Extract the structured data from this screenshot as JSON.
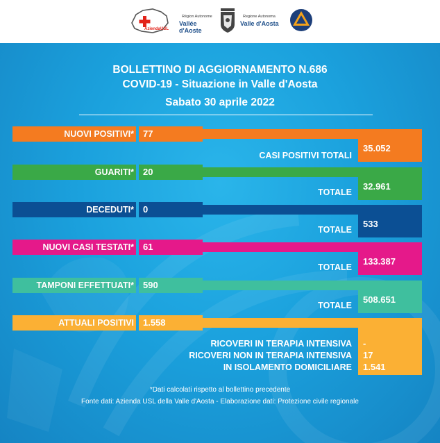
{
  "header": {
    "logo1_text": "AziendaUSL",
    "logo2_line1": "Région Autonome",
    "logo2_line2": "Vallée d'Aoste",
    "logo3_line1": "Regione Autonoma",
    "logo3_line2": "Valle d'Aosta"
  },
  "title": {
    "line1": "BOLLETTINO DI AGGIORNAMENTO N.686",
    "line2": "COVID-19 - Situazione in Valle d'Aosta",
    "date": "Sabato 30 aprile 2022"
  },
  "rows": [
    {
      "label": "NUOVI POSITIVI*",
      "value": "77",
      "total_label": "CASI POSITIVI TOTALI",
      "total_value": "35.052",
      "color": "#f47b20"
    },
    {
      "label": "GUARITI*",
      "value": "20",
      "total_label": "TOTALE",
      "total_value": "32.961",
      "color": "#3aa947"
    },
    {
      "label": "DECEDUTI*",
      "value": "0",
      "total_label": "TOTALE",
      "total_value": "533",
      "color": "#0b4f94"
    },
    {
      "label": "NUOVI CASI TESTATI*",
      "value": "61",
      "total_label": "TOTALE",
      "total_value": "133.387",
      "color": "#e5198a"
    },
    {
      "label": "TAMPONI EFFETTUATI*",
      "value": "590",
      "total_label": "TOTALE",
      "total_value": "508.651",
      "color": "#3fbf9e"
    }
  ],
  "attuali": {
    "label": "ATTUALI POSITIVI",
    "value": "1.558",
    "color": "#fbb034",
    "items": [
      {
        "label": "RICOVERI IN TERAPIA INTENSIVA",
        "value": "-"
      },
      {
        "label": "RICOVERI NON IN TERAPIA INTENSIVA",
        "value": "17"
      },
      {
        "label": "IN ISOLAMENTO DOMICILIARE",
        "value": "1.541"
      }
    ]
  },
  "footer": {
    "note": "*Dati calcolati rispetto al bollettino precedente",
    "source": "Fonte dati: Azienda USL della Valle d'Aosta - Elaborazione dati: Protezione civile regionale"
  }
}
